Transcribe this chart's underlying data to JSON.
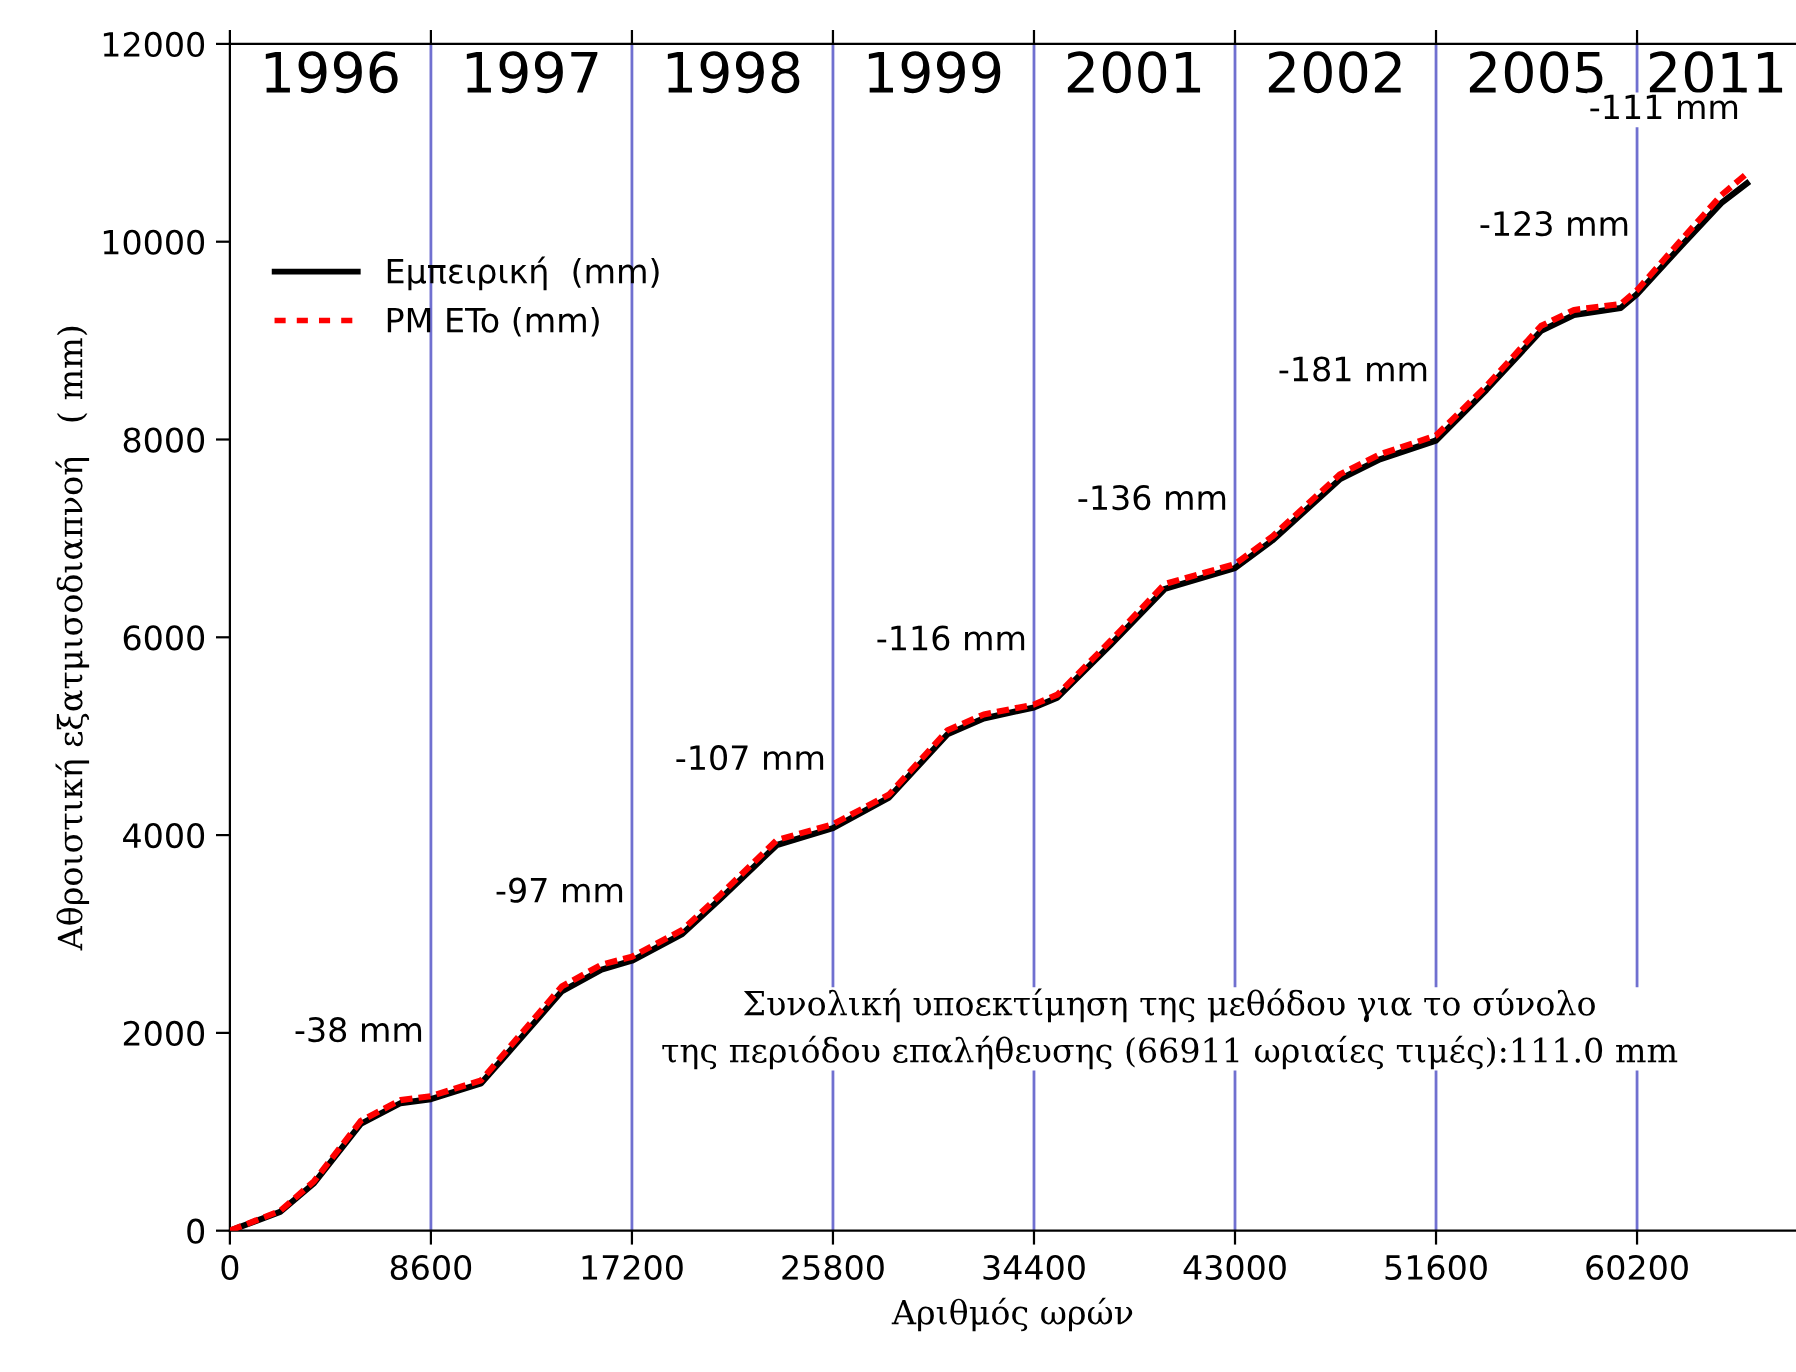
{
  "chart_data": {
    "type": "line",
    "xlabel": "Αριθμός ωρών",
    "ylabel": "Αθροιστική εξατμισοδιαπνοή   ( mm)",
    "xlim": [
      0,
      67000
    ],
    "ylim": [
      0,
      12000
    ],
    "xticks": [
      0,
      8600,
      17200,
      25800,
      34400,
      43000,
      51600,
      60200
    ],
    "yticks": [
      0,
      2000,
      4000,
      6000,
      8000,
      10000,
      12000
    ],
    "grid": false,
    "legend": "top left",
    "marker": "none",
    "series": [
      {
        "name": "Εμπειρική  (mm)",
        "color": "#000000",
        "line_style": "solid",
        "x": [
          0,
          2150,
          3600,
          5600,
          7300,
          8600,
          10750,
          12200,
          14200,
          15900,
          17200,
          19350,
          21000,
          23400,
          25800,
          28200,
          30700,
          32250,
          34400,
          35400,
          37700,
          40000,
          43000,
          44600,
          47500,
          49200,
          51600,
          53750,
          56100,
          57500,
          59500,
          60200,
          62100,
          63800,
          64900
        ],
        "values": [
          0,
          190,
          480,
          1080,
          1290,
          1330,
          1490,
          1880,
          2420,
          2640,
          2730,
          3000,
          3360,
          3900,
          4070,
          4380,
          5020,
          5180,
          5290,
          5390,
          5930,
          6490,
          6700,
          6980,
          7600,
          7800,
          7990,
          8500,
          9100,
          9260,
          9330,
          9470,
          9960,
          10390,
          10590
        ]
      },
      {
        "name": "PM ETo (mm)",
        "color": "#ff0000",
        "line_style": "dashed",
        "x": [
          0,
          2150,
          3600,
          5600,
          7300,
          8600,
          10750,
          12200,
          14200,
          15900,
          17200,
          19350,
          21000,
          23400,
          25800,
          28200,
          30700,
          32250,
          34400,
          35400,
          37700,
          40000,
          43000,
          44600,
          47500,
          49200,
          51600,
          53750,
          56100,
          57500,
          59500,
          60200,
          62100,
          63800,
          64900
        ],
        "values": [
          0,
          200,
          500,
          1110,
          1320,
          1360,
          1520,
          1920,
          2470,
          2690,
          2770,
          3040,
          3400,
          3950,
          4110,
          4410,
          5060,
          5220,
          5320,
          5420,
          5970,
          6540,
          6740,
          7020,
          7650,
          7850,
          8040,
          8540,
          9150,
          9310,
          9370,
          9510,
          10020,
          10470,
          10690
        ]
      }
    ],
    "ref_lines": [
      {
        "axis": "x",
        "value": 8600,
        "color": "#7070d0"
      },
      {
        "axis": "x",
        "value": 17200,
        "color": "#7070d0"
      },
      {
        "axis": "x",
        "value": 25800,
        "color": "#7070d0"
      },
      {
        "axis": "x",
        "value": 34400,
        "color": "#7070d0"
      },
      {
        "axis": "x",
        "value": 43000,
        "color": "#7070d0"
      },
      {
        "axis": "x",
        "value": 51600,
        "color": "#7070d0"
      },
      {
        "axis": "x",
        "value": 60200,
        "color": "#7070d0"
      }
    ],
    "annotations": [
      "1996",
      "1997",
      "1998",
      "1999",
      "2001",
      "2002",
      "2005",
      "2011",
      "-38 mm",
      "-97 mm",
      "-107 mm",
      "-116 mm",
      "-136 mm",
      "-181 mm",
      "-123 mm",
      "-111 mm",
      "Συνολική υποεκτίμηση της μεθόδου για το σύνολο\nτης περιόδου επαλήθευσης (66911 ωριαίες τιμές):111.0 mm"
    ]
  }
}
